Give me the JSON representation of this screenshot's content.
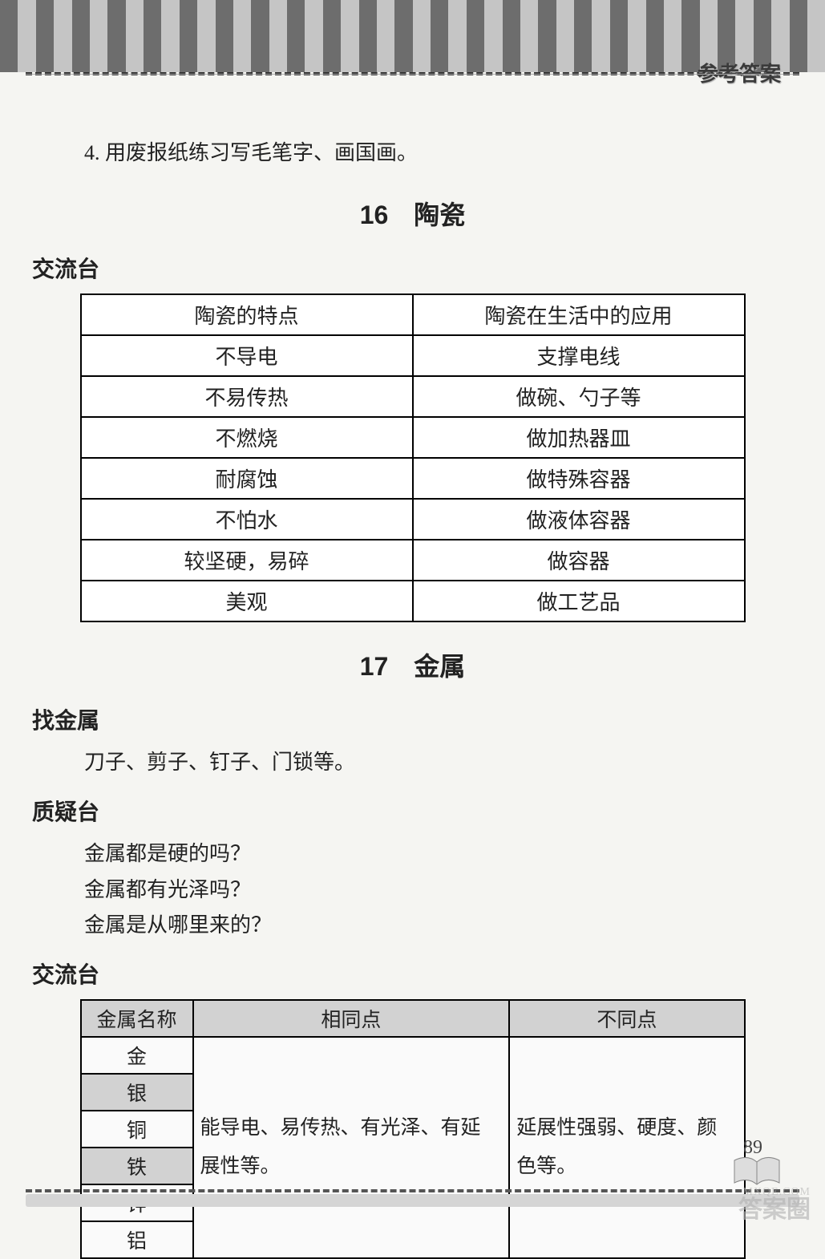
{
  "header_label": "参考答案",
  "stripe_colors": [
    "#6d6d6d",
    "#c5c5c5"
  ],
  "dash_color": "#333333",
  "background": "#f5f5f2",
  "para_4": "4. 用废报纸练习写毛笔字、画国画。",
  "section16": {
    "title": "16　陶瓷",
    "sub": "交流台",
    "table": {
      "header": [
        "陶瓷的特点",
        "陶瓷在生活中的应用"
      ],
      "rows": [
        [
          "不导电",
          "支撑电线"
        ],
        [
          "不易传热",
          "做碗、勺子等"
        ],
        [
          "不燃烧",
          "做加热器皿"
        ],
        [
          "耐腐蚀",
          "做特殊容器"
        ],
        [
          "不怕水",
          "做液体容器"
        ],
        [
          "较坚硬，易碎",
          "做容器"
        ],
        [
          "美观",
          "做工艺品"
        ]
      ],
      "border_color": "#000000",
      "cell_bg": "#ffffff"
    }
  },
  "section17": {
    "title": "17　金属",
    "sub_find": "找金属",
    "find_text": "刀子、剪子、钉子、门锁等。",
    "sub_question": "质疑台",
    "q1": "金属都是硬的吗？",
    "q2": "金属都有光泽吗？",
    "q3": "金属是从哪里来的？",
    "sub_exchange": "交流台",
    "table": {
      "headers": [
        "金属名称",
        "相同点",
        "不同点"
      ],
      "metals": [
        "金",
        "银",
        "铜",
        "铁",
        "锌",
        "铝"
      ],
      "shaded_rows": [
        1,
        3
      ],
      "same_text": "能导电、易传热、有光泽、有延展性等。",
      "diff_text": "延展性强弱、硬度、颜色等。",
      "header_bg": "#d2d2d2",
      "border_color": "#000000"
    }
  },
  "page_number": "89",
  "watermark": "答案圈",
  "watermark_url": "MXQE.COM"
}
